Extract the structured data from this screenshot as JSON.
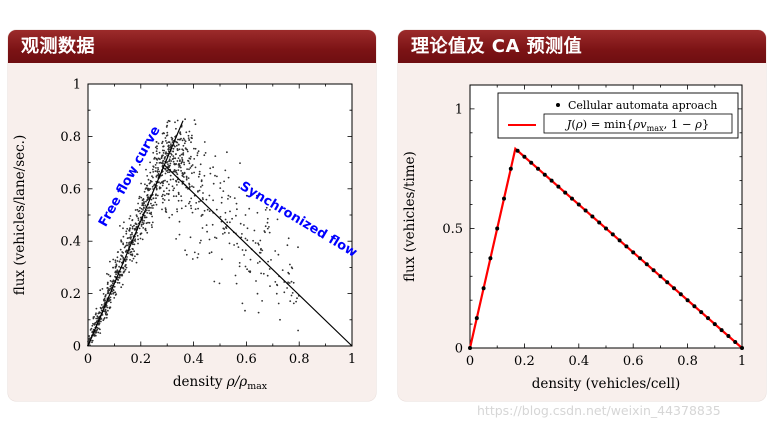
{
  "page": {
    "watermark": "https://blog.csdn.net/weixin_44378835"
  },
  "slides": {
    "left": {
      "title": "观测数据"
    },
    "right": {
      "title": "理论值及 CA 预测值"
    }
  },
  "chart_data": [
    {
      "id": "observed-flow-density",
      "type": "scatter",
      "panel_title": "观测数据",
      "ylabel": "flux (vehicles/lane/sec.)",
      "xlabel_text": "density ρ/ρmax",
      "xlabel_parts": [
        {
          "t": "density "
        },
        {
          "t": "ρ/ρ",
          "i": true
        },
        {
          "t": "max",
          "sub": true
        }
      ],
      "xlim": [
        0,
        1
      ],
      "ylim": [
        0,
        1
      ],
      "xticks": [
        0,
        0.2,
        0.4,
        0.6,
        0.8,
        1
      ],
      "yticks": [
        0,
        0.2,
        0.4,
        0.6,
        0.8,
        1
      ],
      "x_minor": [
        0.1,
        0.3,
        0.5,
        0.7,
        0.9
      ],
      "y_minor": [
        0.1,
        0.3,
        0.5,
        0.7,
        0.9
      ],
      "grid": false,
      "lines": [
        {
          "id": "free-flow-line",
          "points": [
            [
              0,
              0
            ],
            [
              0.36,
              0.86
            ]
          ],
          "color": "#000000"
        },
        {
          "id": "synchronized-line",
          "points": [
            [
              0.29,
              0.69
            ],
            [
              1,
              0
            ]
          ],
          "color": "#000000"
        }
      ],
      "annotations": [
        {
          "id": "free-flow-label",
          "text": "Free flow curve",
          "x": 0.17,
          "y": 0.64,
          "rotate": -61,
          "color": "#0000ff"
        },
        {
          "id": "synchronized-label",
          "text": "Synchronized flow",
          "x": 0.79,
          "y": 0.47,
          "rotate": 31,
          "color": "#0000ff"
        }
      ],
      "scatter_cloud": {
        "comment": "dense empirical cloud: free-flow branch along (0,0)-(0.33,0.80); congested branch spread around synchronized line (0.29,0.69)-(0.80,0.19); blob near capacity peak (0.36,0.68)",
        "seed": 1234,
        "marker_color": "#2f2f2f",
        "marker_radius": 0.9,
        "branches": [
          {
            "name": "free-flow",
            "n": 720,
            "line": [
              [
                0,
                0
              ],
              [
                0.33,
                0.8
              ]
            ],
            "x_spread_base": 0.006,
            "x_spread_gain": 0.028,
            "y_spread": 0.012
          },
          {
            "name": "peak-cluster",
            "n": 150,
            "center": [
              0.36,
              0.68
            ],
            "sx": 0.045,
            "sy": 0.085,
            "x_range": [
              0.26,
              0.52
            ],
            "y_range": [
              0.42,
              0.88
            ]
          },
          {
            "name": "congested",
            "n": 270,
            "line": [
              [
                0.29,
                0.69
              ],
              [
                1,
                0
              ]
            ],
            "x_range": [
              0.28,
              0.8
            ],
            "y_spread": 0.115
          }
        ]
      }
    },
    {
      "id": "theory-ca-prediction",
      "type": "line+scatter",
      "panel_title": "理论值及 CA 预测值",
      "ylabel": "flux (vehicles/time)",
      "xlabel": "density (vehicles/cell)",
      "xlim": [
        0,
        1
      ],
      "ylim": [
        0,
        1.1
      ],
      "xticks": [
        0,
        0.2,
        0.4,
        0.6,
        0.8,
        1
      ],
      "yticks": [
        0,
        0.5,
        1
      ],
      "x_minor": [
        0.1,
        0.3,
        0.5,
        0.7,
        0.9
      ],
      "y_minor": [
        0.1,
        0.2,
        0.3,
        0.4,
        0.6,
        0.7,
        0.8,
        0.9
      ],
      "grid": false,
      "formula": "J(rho) = min(rho*v_max, 1-rho)",
      "v_max": 5,
      "peak": {
        "x": 0.1667,
        "y": 0.8333
      },
      "dot_step": 0.025,
      "line_color": "#ff0000",
      "dot_color": "#000000",
      "dot_radius": 2,
      "legend": {
        "dot_label": "Cellular automata aproach",
        "formula_text": "J(ρ) = min{ρvmax, 1 − ρ}",
        "formula_parts": [
          {
            "t": "J",
            "i": true
          },
          {
            "t": "("
          },
          {
            "t": "ρ",
            "i": true
          },
          {
            "t": ") = min{"
          },
          {
            "t": "ρv",
            "i": true
          },
          {
            "t": "max",
            "sub": true
          },
          {
            "t": ", 1 − "
          },
          {
            "t": "ρ",
            "i": true
          },
          {
            "t": "}"
          }
        ]
      }
    }
  ]
}
